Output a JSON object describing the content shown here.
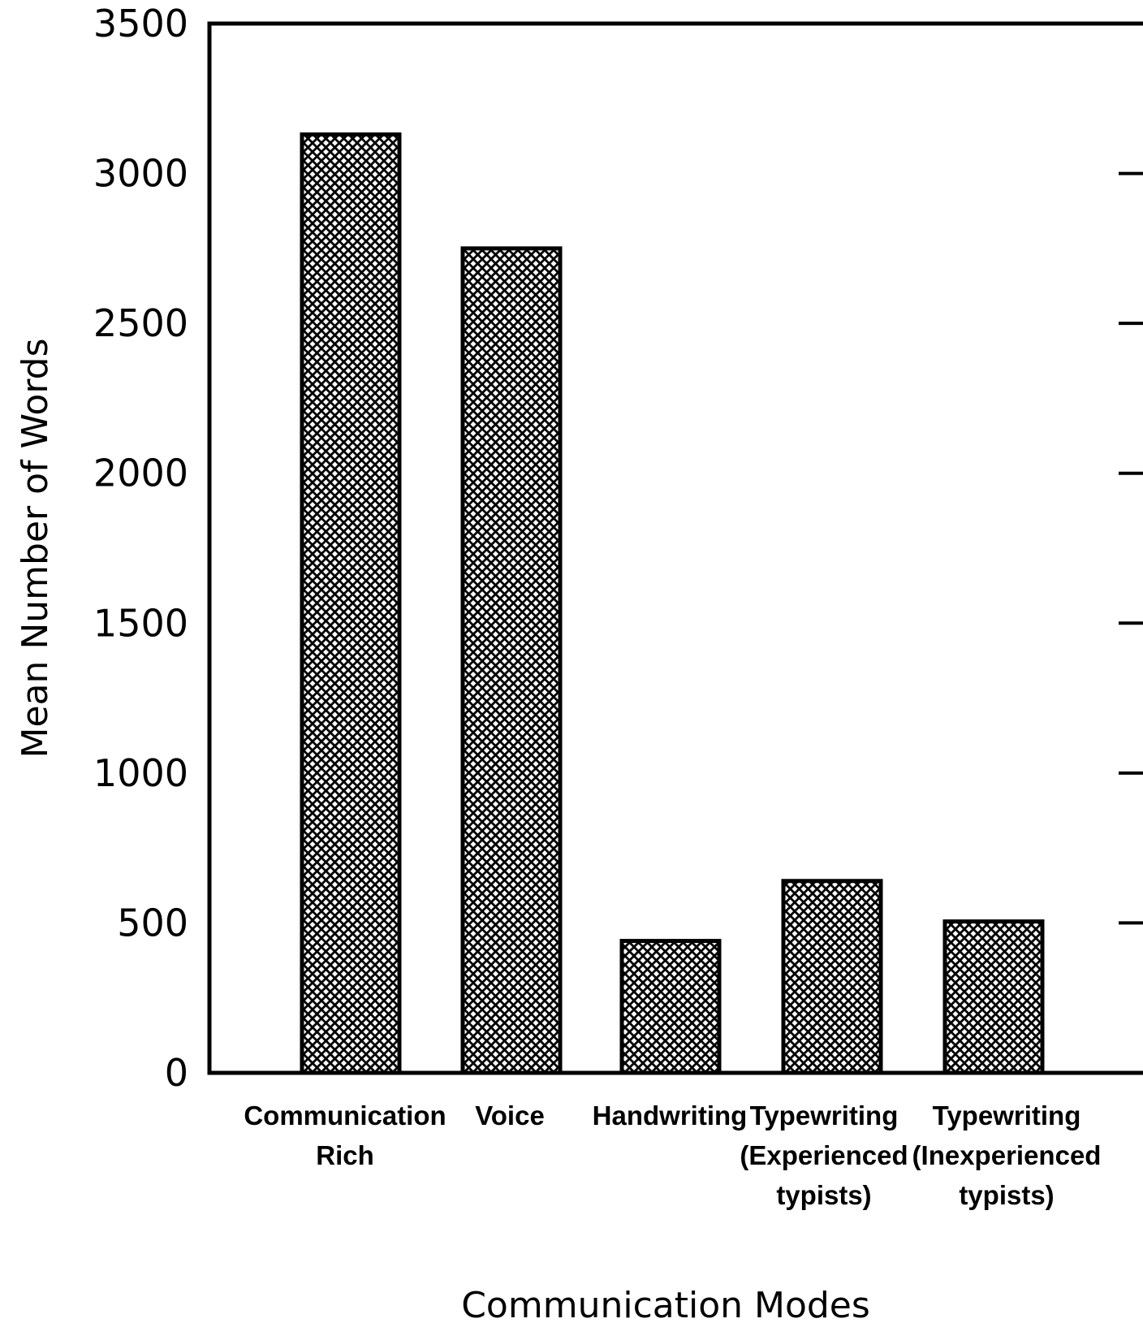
{
  "chart_data": {
    "type": "bar",
    "title": "",
    "xlabel": "Communication Modes",
    "ylabel": "Mean Number of Words",
    "ylim": [
      0,
      3500
    ],
    "yticks": [
      0,
      500,
      1000,
      1500,
      2000,
      2500,
      3000,
      3500
    ],
    "ytick_labels": [
      "0",
      "500",
      "1000",
      "1500",
      "2000",
      "2500",
      "3000",
      "3500"
    ],
    "grid": false,
    "legend": "none",
    "bar_pattern": "crosshatch",
    "colors": {
      "bar_fill": "#000000",
      "background": "#ffffff",
      "axis": "#000000"
    },
    "categories": [
      [
        "Communication",
        "Rich"
      ],
      [
        "Voice"
      ],
      [
        "Handwriting"
      ],
      [
        "Typewriting",
        "(Experienced",
        "typists)"
      ],
      [
        "Typewriting",
        "(Inexperienced",
        "typists)"
      ]
    ],
    "values": [
      3130,
      2750,
      440,
      640,
      505
    ]
  }
}
